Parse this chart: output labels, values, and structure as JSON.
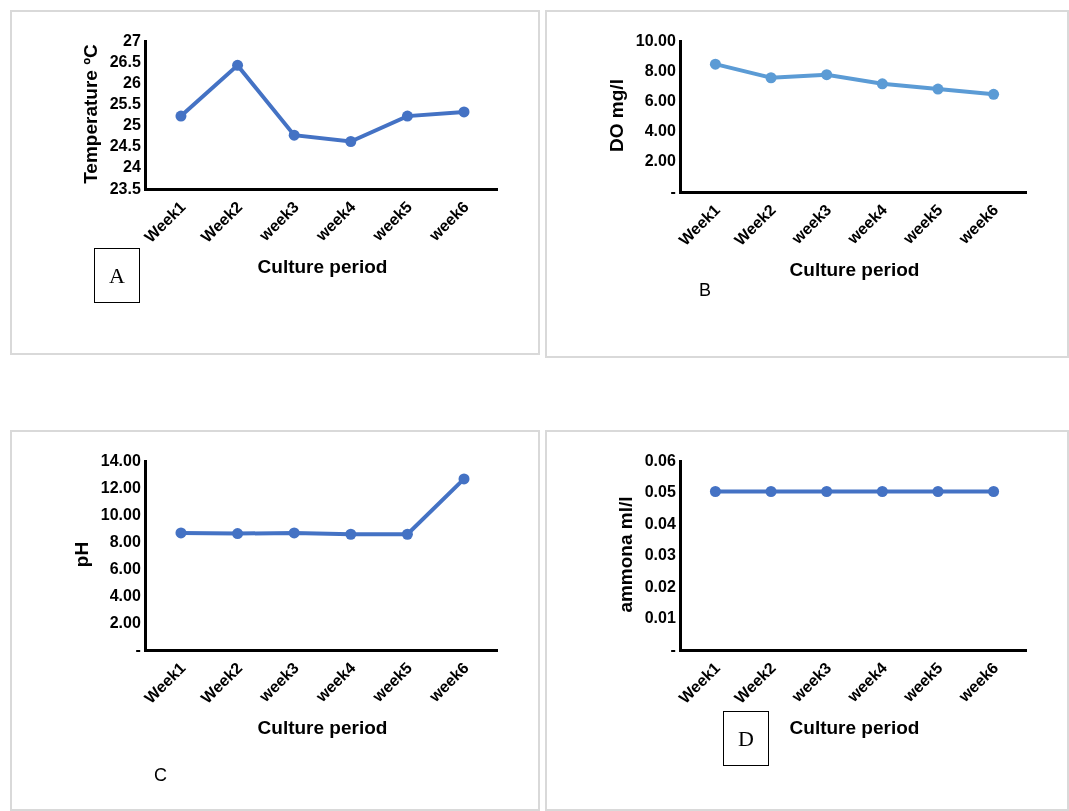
{
  "chart_data": [
    {
      "type": "line",
      "ylabel": "Temperature ºC",
      "xlabel": "Culture period",
      "categories": [
        "Week1",
        "Week2",
        "week3",
        "week4",
        "week5",
        "week6"
      ],
      "series": [
        {
          "color": "#4472c4",
          "values": [
            25.2,
            26.4,
            24.75,
            24.6,
            25.2,
            25.3
          ]
        }
      ],
      "ylim": [
        23.5,
        27
      ],
      "yticks": [
        23.5,
        24,
        24.5,
        25,
        25.5,
        26,
        26.5,
        27
      ],
      "grid": false,
      "marker": "circle",
      "line_style": "solid",
      "annotations": [
        "A"
      ]
    },
    {
      "type": "line",
      "ylabel": "DO mg/l",
      "xlabel": "Culture period",
      "categories": [
        "Week1",
        "Week2",
        "week3",
        "week4",
        "week5",
        "week6"
      ],
      "series": [
        {
          "color": "#5b9bd5",
          "values": [
            8.4,
            7.5,
            7.7,
            7.1,
            6.75,
            6.4
          ]
        }
      ],
      "ylim": [
        0,
        10
      ],
      "yticks": [
        {
          "value": 0,
          "label": "-"
        },
        {
          "value": 2,
          "label": "2.00"
        },
        {
          "value": 4,
          "label": "4.00"
        },
        {
          "value": 6,
          "label": "6.00"
        },
        {
          "value": 8,
          "label": "8.00"
        },
        {
          "value": 10,
          "label": "10.00"
        }
      ],
      "grid": false,
      "marker": "circle",
      "line_style": "solid",
      "annotations": [
        "B"
      ]
    },
    {
      "type": "line",
      "ylabel": "pH",
      "xlabel": "Culture period",
      "categories": [
        "Week1",
        "Week2",
        "week3",
        "week4",
        "week5",
        "week6"
      ],
      "series": [
        {
          "color": "#4472c4",
          "values": [
            8.6,
            8.55,
            8.6,
            8.5,
            8.5,
            12.6
          ]
        }
      ],
      "ylim": [
        0,
        14
      ],
      "yticks": [
        {
          "value": 0,
          "label": "-"
        },
        {
          "value": 2,
          "label": "2.00"
        },
        {
          "value": 4,
          "label": "4.00"
        },
        {
          "value": 6,
          "label": "6.00"
        },
        {
          "value": 8,
          "label": "8.00"
        },
        {
          "value": 10,
          "label": "10.00"
        },
        {
          "value": 12,
          "label": "12.00"
        },
        {
          "value": 14,
          "label": "14.00"
        }
      ],
      "grid": false,
      "marker": "circle",
      "line_style": "solid",
      "annotations": [
        "C"
      ]
    },
    {
      "type": "line",
      "ylabel": "ammona ml/l",
      "xlabel": "Culture period",
      "categories": [
        "Week1",
        "Week2",
        "week3",
        "week4",
        "week5",
        "week6"
      ],
      "series": [
        {
          "color": "#4472c4",
          "values": [
            0.05,
            0.05,
            0.05,
            0.05,
            0.05,
            0.05
          ]
        }
      ],
      "ylim": [
        0,
        0.06
      ],
      "yticks": [
        {
          "value": 0,
          "label": "-"
        },
        0.01,
        0.02,
        0.03,
        0.04,
        0.05,
        0.06
      ],
      "grid": false,
      "marker": "circle",
      "line_style": "solid",
      "annotations": [
        "D"
      ]
    }
  ]
}
